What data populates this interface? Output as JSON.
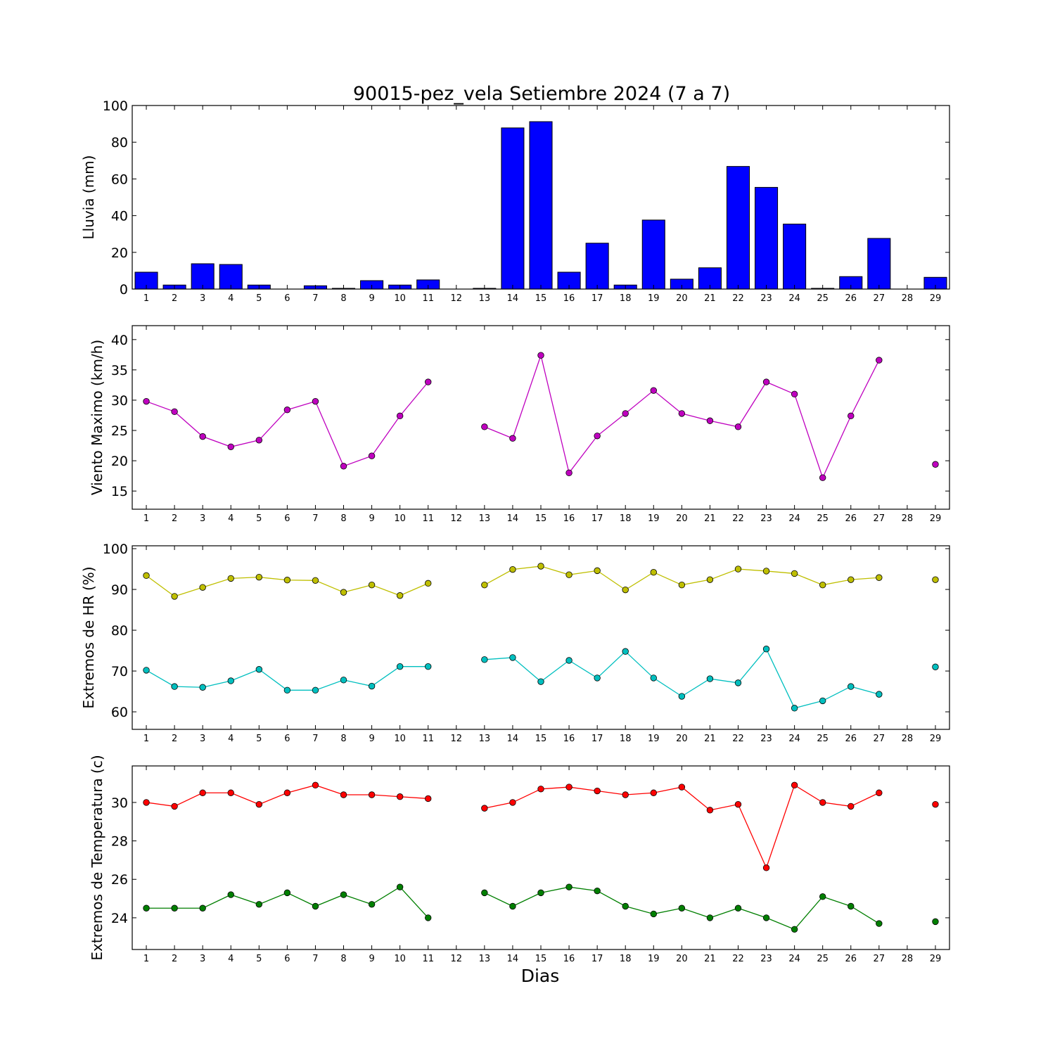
{
  "chart_data": {
    "type": "multi-panel",
    "title": "90015-pez_vela Setiembre 2024  (7 a 7)",
    "xlabel": "Dias",
    "x": [
      1,
      2,
      3,
      4,
      5,
      6,
      7,
      8,
      9,
      10,
      11,
      12,
      13,
      14,
      15,
      16,
      17,
      18,
      19,
      20,
      21,
      22,
      23,
      24,
      25,
      26,
      27,
      28,
      29
    ],
    "xlim": [
      0.5,
      29.5
    ],
    "panels": [
      {
        "type": "bar",
        "ylabel": "Lluvia (mm)",
        "ylim": [
          0,
          100
        ],
        "yticks": [
          0,
          20,
          40,
          60,
          80,
          100
        ],
        "series": [
          {
            "color": "#0000ff",
            "values": [
              9.2,
              2.2,
              13.8,
              13.4,
              2.2,
              0,
              1.8,
              0.4,
              4.6,
              2.2,
              5,
              0,
              0.4,
              87.8,
              91.2,
              9.2,
              25,
              2.2,
              37.6,
              5.4,
              11.6,
              66.8,
              55.4,
              35.4,
              0.4,
              6.8,
              27.6,
              0,
              6.4
            ]
          }
        ]
      },
      {
        "type": "line",
        "ylabel": "Viento Maximo (km/h)",
        "ylim": [
          12,
          42.3
        ],
        "yticks": [
          15,
          20,
          25,
          30,
          35,
          40
        ],
        "series": [
          {
            "color": "#bf00bf",
            "values": [
              29.8,
              28.1,
              24,
              22.3,
              23.4,
              28.4,
              29.8,
              19.1,
              20.8,
              27.4,
              33,
              null,
              25.6,
              23.7,
              37.4,
              18,
              24.1,
              27.8,
              31.6,
              27.8,
              26.6,
              25.6,
              33,
              31,
              17.2,
              27.4,
              36.6,
              null,
              19.4
            ]
          }
        ]
      },
      {
        "type": "line",
        "ylabel": "Extremos de HR (%)",
        "ylim": [
          55.7,
          100.7
        ],
        "yticks": [
          60,
          70,
          80,
          90,
          100
        ],
        "series": [
          {
            "color": "#bfbf00",
            "values": [
              93.4,
              88.3,
              90.5,
              92.7,
              93,
              92.3,
              92.2,
              89.3,
              91.1,
              88.5,
              91.5,
              null,
              91.1,
              94.9,
              95.7,
              93.6,
              94.6,
              89.9,
              94.2,
              91.1,
              92.4,
              95,
              94.5,
              93.9,
              91.1,
              92.4,
              92.9,
              null,
              92.4
            ]
          },
          {
            "color": "#00bfbf",
            "values": [
              70.2,
              66.2,
              66,
              67.6,
              70.4,
              65.3,
              65.3,
              67.8,
              66.3,
              71.1,
              71.1,
              null,
              72.8,
              73.3,
              67.4,
              72.6,
              68.3,
              74.8,
              68.3,
              63.8,
              68.1,
              67.1,
              75.4,
              60.9,
              62.7,
              66.2,
              64.3,
              null,
              71
            ]
          }
        ]
      },
      {
        "type": "line",
        "ylabel": "Extremos de Temperatura (c)",
        "ylim": [
          22.35,
          31.9
        ],
        "yticks": [
          24,
          26,
          28,
          30
        ],
        "series": [
          {
            "color": "#ff0000",
            "values": [
              30,
              29.8,
              30.5,
              30.5,
              29.9,
              30.5,
              30.9,
              30.4,
              30.4,
              30.3,
              30.2,
              null,
              29.7,
              30,
              30.7,
              30.8,
              30.6,
              30.4,
              30.5,
              30.8,
              29.6,
              29.9,
              26.6,
              30.9,
              30,
              29.8,
              30.5,
              null,
              29.9
            ]
          },
          {
            "color": "#007f00",
            "values": [
              24.5,
              24.5,
              24.5,
              25.2,
              24.7,
              25.3,
              24.6,
              25.2,
              24.7,
              25.6,
              24,
              null,
              25.3,
              24.6,
              25.3,
              25.6,
              25.4,
              24.6,
              24.2,
              24.5,
              24,
              24.5,
              24,
              23.4,
              25.1,
              24.6,
              23.7,
              null,
              23.8
            ]
          }
        ]
      }
    ]
  }
}
